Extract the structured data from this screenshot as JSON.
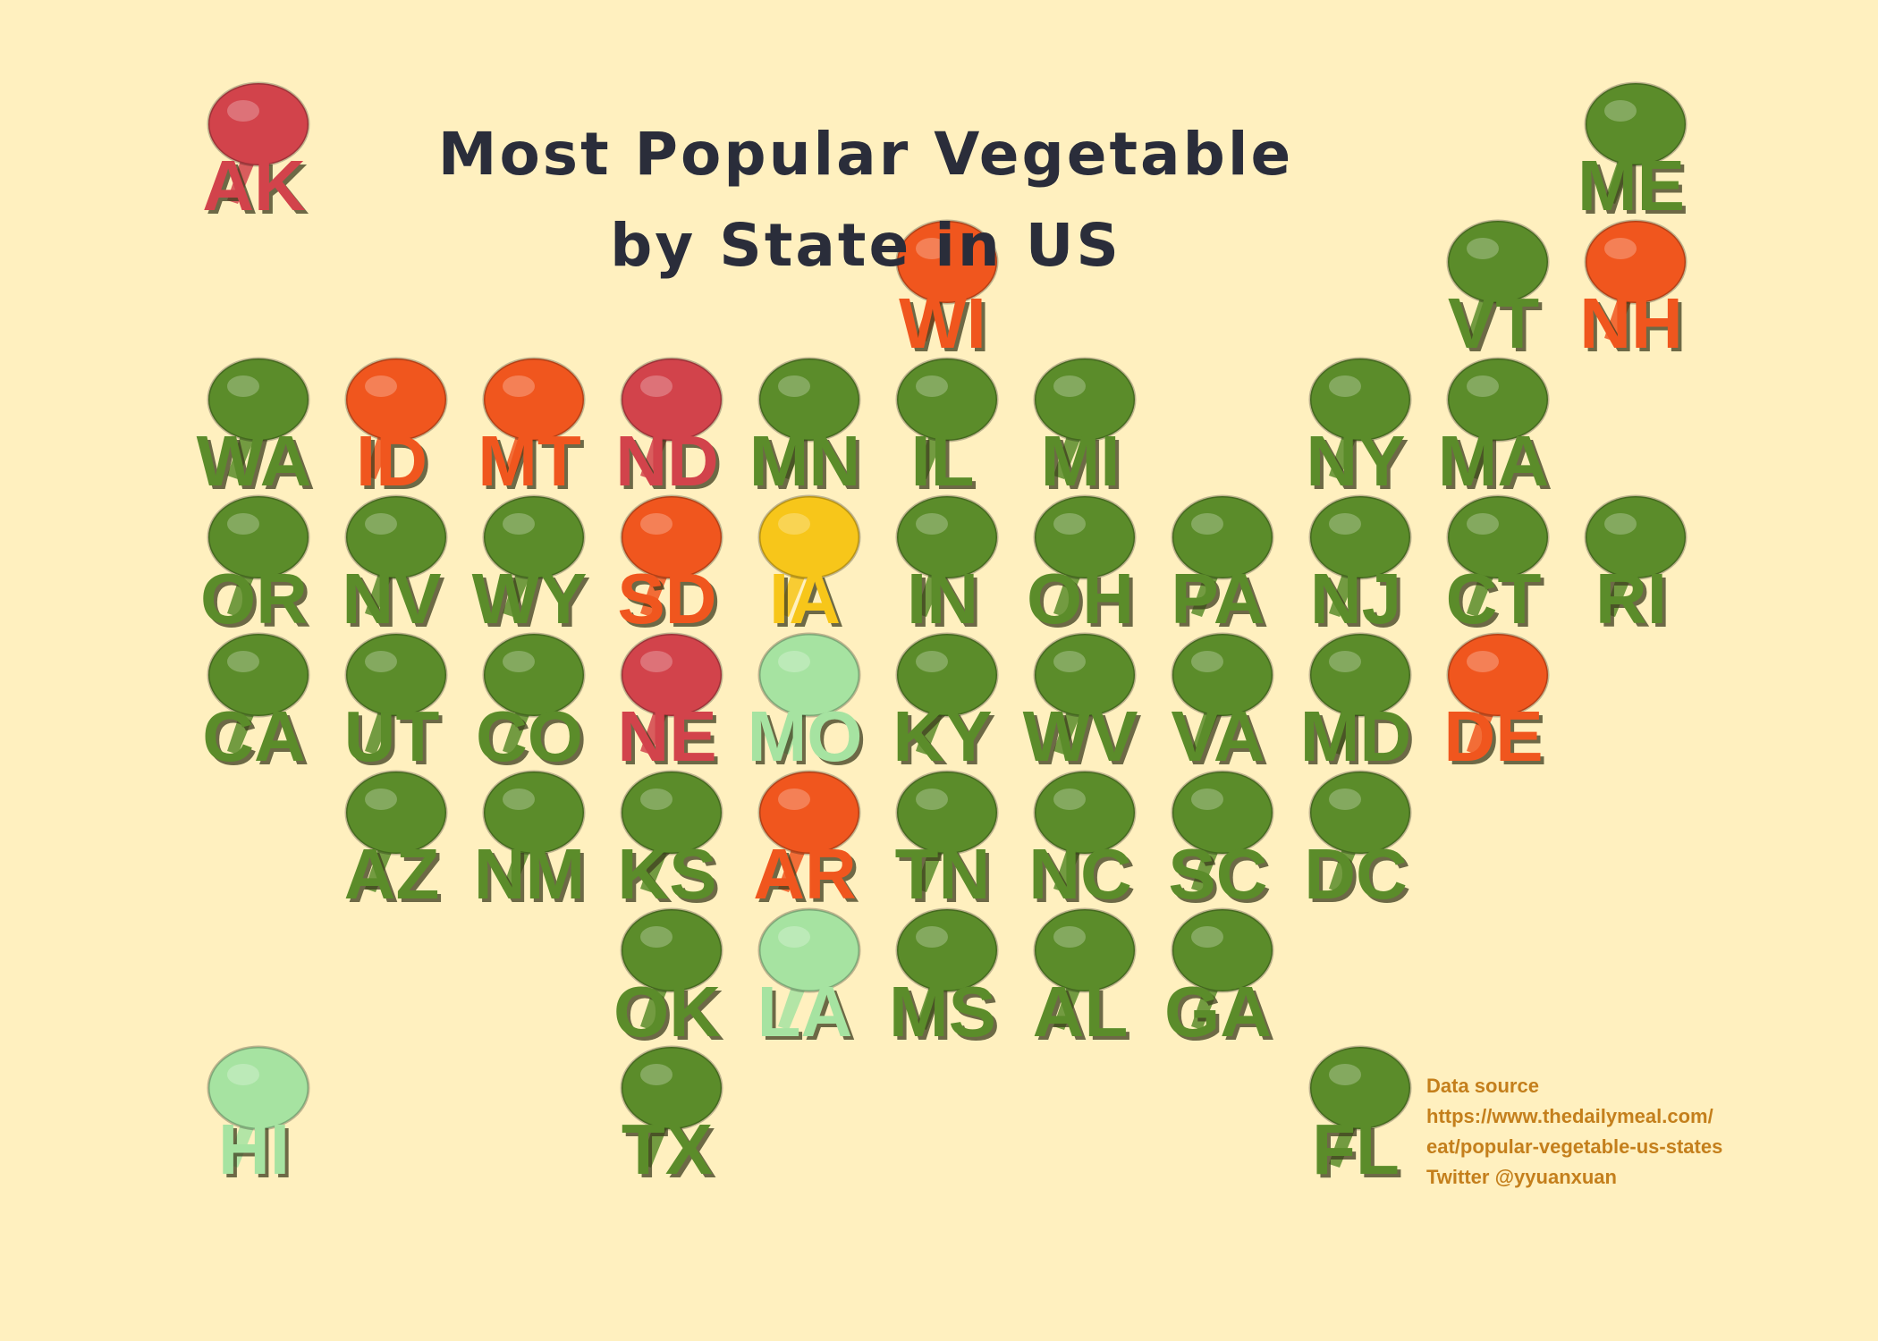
{
  "title": [
    "Most Popular Vegetable",
    "by State in US"
  ],
  "tiles": {
    "rows": [
      [
        {
          "label": "AK",
          "color": "#d2434b"
        },
        null,
        null,
        null,
        null,
        null,
        null,
        null,
        null,
        null,
        {
          "label": "ME",
          "color": "#5b8c2a"
        }
      ],
      [
        null,
        null,
        null,
        null,
        null,
        {
          "label": "WI",
          "color": "#f0561e"
        },
        null,
        null,
        null,
        {
          "label": "VT",
          "color": "#5b8c2a"
        },
        {
          "label": "NH",
          "color": "#f0561e"
        }
      ],
      [
        {
          "label": "WA",
          "color": "#5b8c2a"
        },
        {
          "label": "ID",
          "color": "#f0561e"
        },
        {
          "label": "MT",
          "color": "#f0561e"
        },
        {
          "label": "ND",
          "color": "#d2434b"
        },
        {
          "label": "MN",
          "color": "#5b8c2a"
        },
        {
          "label": "IL",
          "color": "#5b8c2a"
        },
        {
          "label": "MI",
          "color": "#5b8c2a"
        },
        null,
        {
          "label": "NY",
          "color": "#5b8c2a"
        },
        {
          "label": "MA",
          "color": "#5b8c2a"
        }
      ],
      [
        {
          "label": "OR",
          "color": "#5b8c2a"
        },
        {
          "label": "NV",
          "color": "#5b8c2a"
        },
        {
          "label": "WY",
          "color": "#5b8c2a"
        },
        {
          "label": "SD",
          "color": "#f0561e"
        },
        {
          "label": "IA",
          "color": "#f7c61a"
        },
        {
          "label": "IN",
          "color": "#5b8c2a"
        },
        {
          "label": "OH",
          "color": "#5b8c2a"
        },
        {
          "label": "PA",
          "color": "#5b8c2a"
        },
        {
          "label": "NJ",
          "color": "#5b8c2a"
        },
        {
          "label": "CT",
          "color": "#5b8c2a"
        },
        {
          "label": "RI",
          "color": "#5b8c2a"
        }
      ],
      [
        {
          "label": "CA",
          "color": "#5b8c2a"
        },
        {
          "label": "UT",
          "color": "#5b8c2a"
        },
        {
          "label": "CO",
          "color": "#5b8c2a"
        },
        {
          "label": "NE",
          "color": "#d2434b"
        },
        {
          "label": "MO",
          "color": "#a6e3a1"
        },
        {
          "label": "KY",
          "color": "#5b8c2a"
        },
        {
          "label": "WV",
          "color": "#5b8c2a"
        },
        {
          "label": "VA",
          "color": "#5b8c2a"
        },
        {
          "label": "MD",
          "color": "#5b8c2a"
        },
        {
          "label": "DE",
          "color": "#f0561e"
        }
      ],
      [
        null,
        {
          "label": "AZ",
          "color": "#5b8c2a"
        },
        {
          "label": "NM",
          "color": "#5b8c2a"
        },
        {
          "label": "KS",
          "color": "#5b8c2a"
        },
        {
          "label": "AR",
          "color": "#f0561e"
        },
        {
          "label": "TN",
          "color": "#5b8c2a"
        },
        {
          "label": "NC",
          "color": "#5b8c2a"
        },
        {
          "label": "SC",
          "color": "#5b8c2a"
        },
        {
          "label": "DC",
          "color": "#5b8c2a"
        }
      ],
      [
        null,
        null,
        null,
        {
          "label": "OK",
          "color": "#5b8c2a"
        },
        {
          "label": "LA",
          "color": "#a6e3a1"
        },
        {
          "label": "MS",
          "color": "#5b8c2a"
        },
        {
          "label": "AL",
          "color": "#5b8c2a"
        },
        {
          "label": "GA",
          "color": "#5b8c2a"
        }
      ],
      [
        {
          "label": "HI",
          "color": "#a6e3a1"
        },
        null,
        null,
        {
          "label": "TX",
          "color": "#5b8c2a"
        },
        null,
        null,
        null,
        null,
        {
          "label": "FL",
          "color": "#5b8c2a"
        }
      ]
    ]
  },
  "source": [
    "Data source",
    "https://www.thedailymeal.com/",
    "eat/popular-vegetable-us-states",
    "Twitter @yyuanxuan"
  ]
}
